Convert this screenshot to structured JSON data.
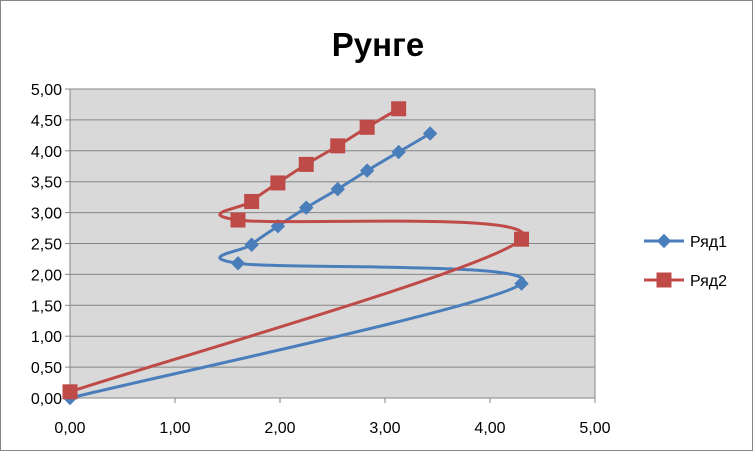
{
  "chart_data": {
    "type": "scatter",
    "title": "Рунге",
    "xlabel": "",
    "ylabel": "",
    "xlim": [
      0,
      5
    ],
    "ylim": [
      0,
      5
    ],
    "xticks": [
      "0,00",
      "1,00",
      "2,00",
      "3,00",
      "4,00",
      "5,00"
    ],
    "yticks": [
      "0,00",
      "0,50",
      "1,00",
      "1,50",
      "2,00",
      "2,50",
      "3,00",
      "3,50",
      "4,00",
      "4,50",
      "5,00"
    ],
    "grid": true,
    "legend_position": "right",
    "series": [
      {
        "name": "Ряд1",
        "color": "#4a7ebb",
        "marker": "diamond",
        "points": [
          [
            0.0,
            0.0
          ],
          [
            4.3,
            1.85
          ],
          [
            1.6,
            2.18
          ],
          [
            1.73,
            2.48
          ],
          [
            1.98,
            2.78
          ],
          [
            2.25,
            3.08
          ],
          [
            2.55,
            3.38
          ],
          [
            2.83,
            3.68
          ],
          [
            3.13,
            3.98
          ],
          [
            3.43,
            4.28
          ]
        ]
      },
      {
        "name": "Ряд2",
        "color": "#be4b48",
        "marker": "square",
        "points": [
          [
            0.0,
            0.1
          ],
          [
            4.3,
            2.57
          ],
          [
            1.6,
            2.88
          ],
          [
            1.73,
            3.18
          ],
          [
            1.98,
            3.48
          ],
          [
            2.25,
            3.78
          ],
          [
            2.55,
            4.08
          ],
          [
            2.83,
            4.38
          ],
          [
            3.13,
            4.68
          ]
        ]
      }
    ]
  }
}
